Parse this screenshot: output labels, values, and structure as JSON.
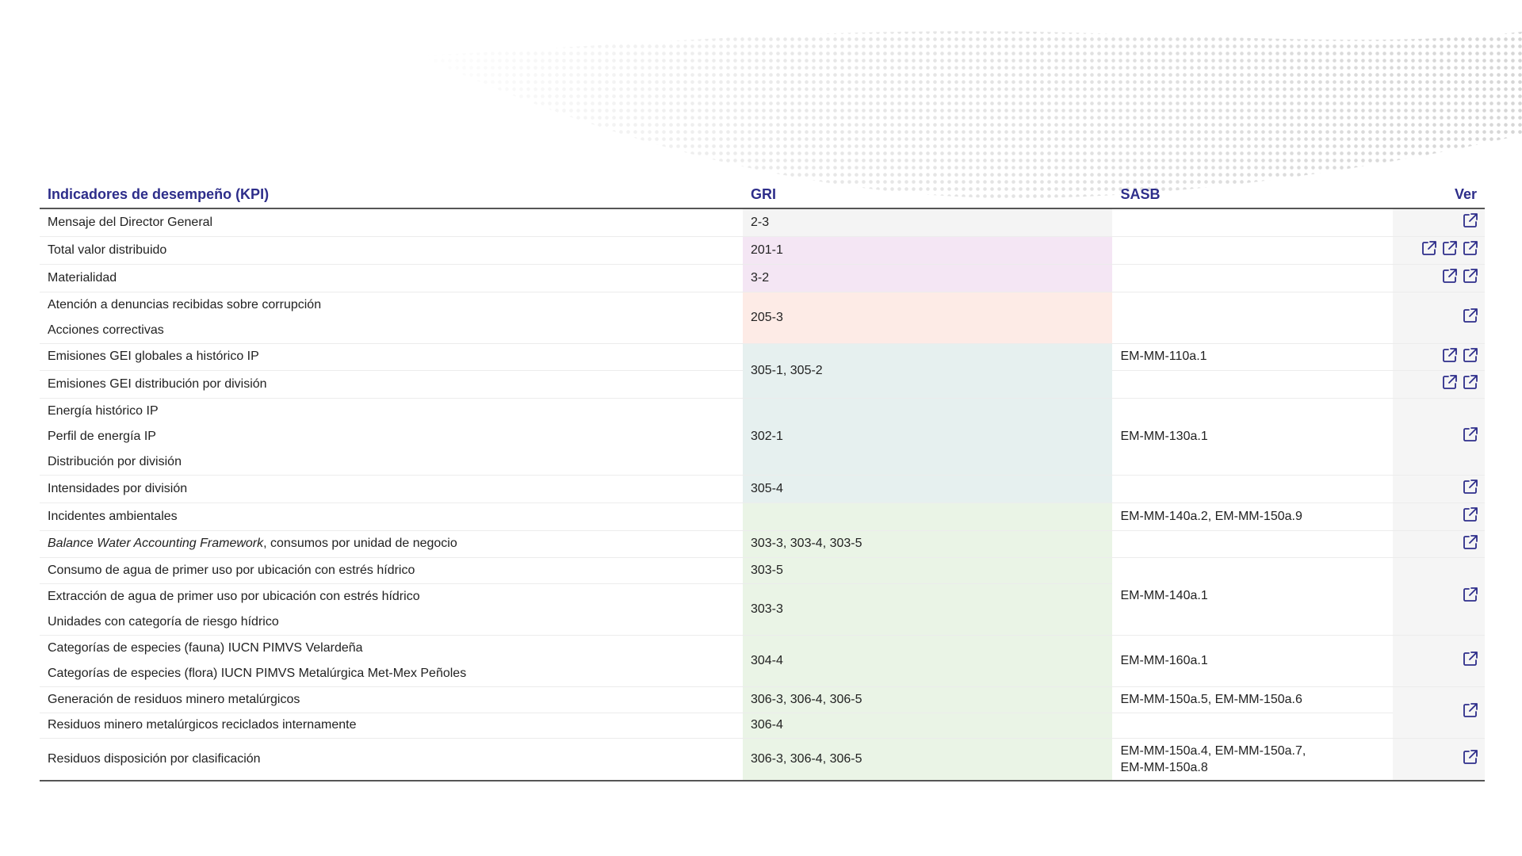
{
  "header": {
    "kpi": "Indicadores de desempeño (KPI)",
    "gri": "GRI",
    "sasb": "SASB",
    "ver": "Ver"
  },
  "accent_color": "#2d2d8a",
  "icon": "external-link-icon",
  "rows": [
    {
      "kpi": "Mensaje del Director General",
      "gri": "2-3",
      "sasb": "",
      "links": 1
    },
    {
      "kpi": "Total valor distribuido",
      "gri": "201-1",
      "sasb": "",
      "links": 3
    },
    {
      "kpi": "Materialidad",
      "gri": "3-2",
      "sasb": "",
      "links": 2
    },
    {
      "kpi_lines": [
        "Atención a denuncias recibidas sobre corrupción",
        "Acciones correctivas"
      ],
      "gri": "205-3",
      "sasb": "",
      "links": 1
    },
    {
      "kpi": "Emisiones GEI globales a histórico IP",
      "gri": "305-1, 305-2",
      "sasb": "EM-MM-110a.1",
      "links": 2
    },
    {
      "kpi": "Emisiones GEI distribución por división",
      "sasb": "",
      "links": 2
    },
    {
      "kpi_lines": [
        "Energía histórico IP",
        "Perfil de energía IP",
        "Distribución por división"
      ],
      "gri": "302-1",
      "sasb": "EM-MM-130a.1",
      "links": 1
    },
    {
      "kpi": "Intensidades por división",
      "gri": "305-4",
      "sasb": "",
      "links": 1
    },
    {
      "kpi": "Incidentes ambientales",
      "gri": "",
      "sasb": "EM-MM-140a.2, EM-MM-150a.9",
      "links": 1
    },
    {
      "kpi_italic": "Balance Water Accounting Framework",
      "kpi": ", consumos por unidad de negocio",
      "gri": "303-3, 303-4, 303-5",
      "sasb": "",
      "links": 1
    },
    {
      "kpi": "Consumo de agua de primer uso por ubicación con estrés hídrico",
      "gri": "303-5",
      "sasb": "EM-MM-140a.1",
      "links": 1
    },
    {
      "kpi_lines": [
        "Extracción de agua de primer uso por ubicación con estrés hídrico",
        "Unidades con categoría de riesgo hídrico"
      ],
      "gri": "303-3"
    },
    {
      "kpi_lines": [
        "Categorías de especies (fauna) IUCN PIMVS Velardeña",
        "Categorías de especies (flora) IUCN PIMVS Metalúrgica Met-Mex Peñoles"
      ],
      "gri": "304-4",
      "sasb": "EM-MM-160a.1",
      "links": 1
    },
    {
      "kpi": "Generación de residuos minero metalúrgicos",
      "gri": "306-3, 306-4, 306-5",
      "sasb": "EM-MM-150a.5, EM-MM-150a.6",
      "links": 1
    },
    {
      "kpi": "Residuos minero metalúrgicos reciclados internamente",
      "gri": "306-4",
      "sasb": ""
    },
    {
      "kpi": "Residuos disposición por clasificación",
      "gri": "306-3, 306-4, 306-5",
      "sasb_lines": [
        "EM-MM-150a.4, EM-MM-150a.7,",
        "EM-MM-150a.8"
      ],
      "links": 1
    }
  ]
}
